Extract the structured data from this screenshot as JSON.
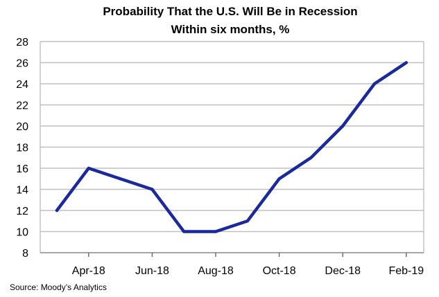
{
  "chart_data": {
    "type": "line",
    "title": "Probability That the U.S. Will Be in Recession",
    "subtitle": "Within six months, %",
    "xlabel": "",
    "ylabel": "",
    "x": [
      "Mar-18",
      "Apr-18",
      "May-18",
      "Jun-18",
      "Jul-18",
      "Aug-18",
      "Sep-18",
      "Oct-18",
      "Nov-18",
      "Dec-18",
      "Jan-19",
      "Feb-19"
    ],
    "x_tick_labels": [
      "Apr-18",
      "Jun-18",
      "Aug-18",
      "Oct-18",
      "Dec-18",
      "Feb-19"
    ],
    "series": [
      {
        "values": [
          12,
          16,
          15,
          14,
          10,
          10,
          11,
          15,
          17,
          20,
          24,
          26
        ]
      }
    ],
    "ylim": [
      8,
      28
    ],
    "yticks": [
      8,
      10,
      12,
      14,
      16,
      18,
      20,
      22,
      24,
      26,
      28
    ],
    "grid": true,
    "legend": "none",
    "line_color": "#1a2a9c",
    "grid_color": "#c0c0c0",
    "source": "Source: Moody’s Analytics"
  }
}
